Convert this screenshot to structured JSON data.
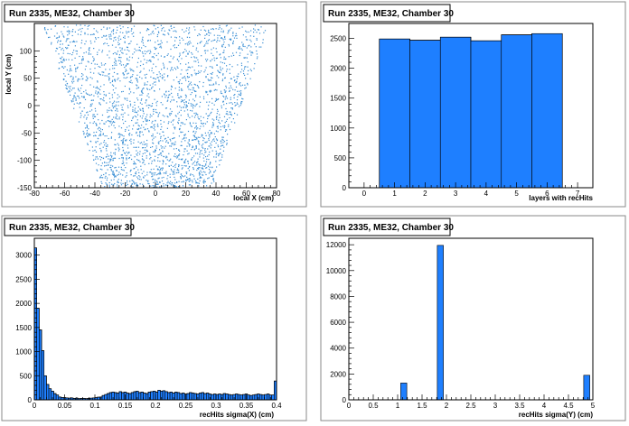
{
  "colors": {
    "fill": "#1e7fff",
    "marker": "#3a8fd4",
    "frame": "#8a8a8a"
  },
  "chart_data": [
    {
      "type": "scatter",
      "title": "Run 2335, ME32, Chamber 30",
      "stats_label": "",
      "xlabel": "local X (cm)",
      "ylabel": "local Y (cm)",
      "xlim": [
        -80,
        80
      ],
      "ylim": [
        -150,
        150
      ],
      "xticks": [
        -80,
        -60,
        -40,
        -20,
        0,
        20,
        40,
        60,
        80
      ],
      "yticks": [
        -150,
        -100,
        -50,
        0,
        50,
        100
      ],
      "distribution": {
        "shape": "trapezoid",
        "x_range_at_y_top": [
          -75,
          75
        ],
        "x_range_at_y_bottom": [
          -35,
          37
        ],
        "y_range": [
          -148,
          148
        ]
      }
    },
    {
      "type": "bar",
      "title": "Run 2335, ME32, Chamber 30",
      "stats_label": "",
      "xlabel": "layers with recHits",
      "ylabel": "",
      "xlim": [
        -0.5,
        7.5
      ],
      "ylim": [
        0,
        2750
      ],
      "xticks": [
        0,
        1,
        2,
        3,
        4,
        5,
        6,
        7
      ],
      "yticks": [
        0,
        500,
        1000,
        1500,
        2000,
        2500
      ],
      "x": [
        1,
        2,
        3,
        4,
        5,
        6
      ],
      "bin_width": 1,
      "values": [
        2490,
        2470,
        2520,
        2460,
        2560,
        2580
      ]
    },
    {
      "type": "bar",
      "title": "Run 2335, ME32, Chamber 30",
      "stats_label": "",
      "xlabel": "recHits sigma(X) (cm)",
      "ylabel": "",
      "xlim": [
        0,
        0.4
      ],
      "ylim": [
        0,
        3350
      ],
      "xticks": [
        0,
        0.05,
        0.1,
        0.15,
        0.2,
        0.25,
        0.3,
        0.35,
        0.4
      ],
      "xtick_labels": [
        "0",
        "0.05",
        "0.1",
        "0.15",
        "0.2",
        "0.25",
        "0.3",
        "0.35",
        "0.4"
      ],
      "yticks": [
        0,
        500,
        1000,
        1500,
        2000,
        2500,
        3000
      ],
      "bin_width": 0.004,
      "values": [
        3150,
        1900,
        1450,
        1020,
        500,
        320,
        230,
        180,
        130,
        100,
        60,
        50,
        45,
        40,
        35,
        40,
        30,
        35,
        25,
        30,
        30,
        25,
        30,
        35,
        40,
        45,
        55,
        60,
        90,
        110,
        130,
        150,
        160,
        150,
        140,
        170,
        150,
        160,
        140,
        130,
        150,
        170,
        180,
        150,
        160,
        140,
        130,
        160,
        170,
        180,
        160,
        200,
        180,
        190,
        170,
        150,
        160,
        140,
        160,
        150,
        130,
        140,
        120,
        130,
        150,
        140,
        130,
        120,
        140,
        150,
        130,
        140,
        120,
        110,
        120,
        110,
        120,
        110,
        130,
        120,
        110,
        100,
        110,
        120,
        110,
        100,
        110,
        120,
        100,
        90,
        100,
        110,
        120,
        110,
        100,
        110,
        120,
        100,
        100,
        390
      ]
    },
    {
      "type": "bar",
      "title": "Run 2335, ME32, Chamber 30",
      "stats_label": "",
      "xlabel": "recHits sigma(Y) (cm)",
      "ylabel": "",
      "xlim": [
        0,
        5
      ],
      "ylim": [
        0,
        12500
      ],
      "xticks": [
        0,
        0.5,
        1,
        1.5,
        2,
        2.5,
        3,
        3.5,
        4,
        4.5,
        5
      ],
      "xtick_labels": [
        "0",
        "0.5",
        "1",
        "1.5",
        "2",
        "2.5",
        "3",
        "3.5",
        "4",
        "4.5",
        "5"
      ],
      "yticks": [
        0,
        2000,
        4000,
        6000,
        8000,
        10000,
        12000
      ],
      "bin_width": 0.125,
      "bins": [
        {
          "x": 1.125,
          "value": 1300
        },
        {
          "x": 1.875,
          "value": 11950
        },
        {
          "x": 4.875,
          "value": 1900
        }
      ]
    }
  ]
}
